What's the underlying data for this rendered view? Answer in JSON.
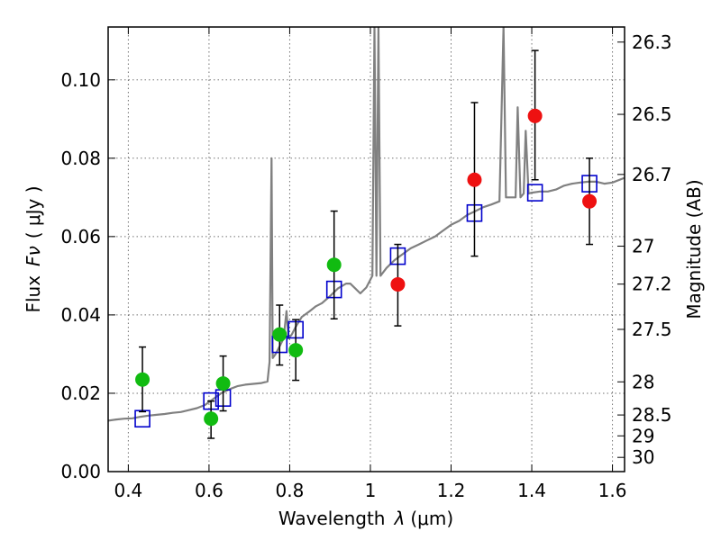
{
  "chart_data": {
    "type": "scatter",
    "xlabel": "Wavelength",
    "xlabel_symbol": "λ",
    "xlabel_unit": "(μm)",
    "ylabel": "Flux",
    "ylabel_symbol": "Fν",
    "ylabel_unit": "( μJy )",
    "ylabel_right": "Magnitude (AB)",
    "xlim": [
      0.35,
      1.63
    ],
    "ylim": [
      0.0,
      0.1135
    ],
    "grid": true,
    "x_ticks": [
      0.4,
      0.6,
      0.8,
      1.0,
      1.2,
      1.4,
      1.6
    ],
    "x_tick_labels": [
      "0.4",
      "0.6",
      "0.8",
      "1",
      "1.2",
      "1.4",
      "1.6"
    ],
    "y_ticks": [
      0.0,
      0.02,
      0.04,
      0.06,
      0.08,
      0.1
    ],
    "y_tick_labels": [
      "0.00",
      "0.02",
      "0.04",
      "0.06",
      "0.08",
      "0.10"
    ],
    "right_ticks": [
      {
        "mag": 26.3,
        "label": "26.3"
      },
      {
        "mag": 26.5,
        "label": "26.5"
      },
      {
        "mag": 26.7,
        "label": "26.7"
      },
      {
        "mag": 27.0,
        "label": "27"
      },
      {
        "mag": 27.2,
        "label": "27.2"
      },
      {
        "mag": 27.5,
        "label": "27.5"
      },
      {
        "mag": 28.0,
        "label": "28"
      },
      {
        "mag": 28.5,
        "label": "28.5"
      },
      {
        "mag": 29.0,
        "label": "29"
      },
      {
        "mag": 30.0,
        "label": "30"
      }
    ],
    "colors": {
      "spectrum": "#808080",
      "green_points": "#11bb11",
      "red_points": "#ee1111",
      "model_squares": "#0000cc",
      "errorbars": "#000000"
    },
    "series": [
      {
        "kind": "spectrum",
        "points": [
          [
            0.35,
            0.013
          ],
          [
            0.37,
            0.0133
          ],
          [
            0.39,
            0.0135
          ],
          [
            0.41,
            0.0136
          ],
          [
            0.43,
            0.014
          ],
          [
            0.45,
            0.0143
          ],
          [
            0.47,
            0.0145
          ],
          [
            0.49,
            0.0147
          ],
          [
            0.51,
            0.015
          ],
          [
            0.53,
            0.0152
          ],
          [
            0.55,
            0.0157
          ],
          [
            0.57,
            0.0162
          ],
          [
            0.59,
            0.017
          ],
          [
            0.61,
            0.0185
          ],
          [
            0.63,
            0.02
          ],
          [
            0.65,
            0.021
          ],
          [
            0.67,
            0.0218
          ],
          [
            0.69,
            0.0222
          ],
          [
            0.71,
            0.0224
          ],
          [
            0.73,
            0.0226
          ],
          [
            0.745,
            0.023
          ],
          [
            0.75,
            0.028
          ],
          [
            0.755,
            0.08
          ],
          [
            0.758,
            0.029
          ],
          [
            0.765,
            0.03
          ],
          [
            0.775,
            0.032
          ],
          [
            0.785,
            0.034
          ],
          [
            0.792,
            0.041
          ],
          [
            0.797,
            0.034
          ],
          [
            0.805,
            0.035
          ],
          [
            0.815,
            0.037
          ],
          [
            0.83,
            0.0395
          ],
          [
            0.85,
            0.041
          ],
          [
            0.865,
            0.0422
          ],
          [
            0.88,
            0.043
          ],
          [
            0.9,
            0.0448
          ],
          [
            0.92,
            0.0468
          ],
          [
            0.94,
            0.048
          ],
          [
            0.95,
            0.048
          ],
          [
            0.96,
            0.047
          ],
          [
            0.975,
            0.0455
          ],
          [
            0.99,
            0.047
          ],
          [
            1.005,
            0.05
          ],
          [
            1.01,
            0.1135
          ],
          [
            1.015,
            0.05
          ],
          [
            1.02,
            0.1135
          ],
          [
            1.025,
            0.05
          ],
          [
            1.04,
            0.052
          ],
          [
            1.06,
            0.054
          ],
          [
            1.08,
            0.0555
          ],
          [
            1.1,
            0.057
          ],
          [
            1.12,
            0.058
          ],
          [
            1.14,
            0.059
          ],
          [
            1.16,
            0.06
          ],
          [
            1.18,
            0.0615
          ],
          [
            1.2,
            0.063
          ],
          [
            1.22,
            0.064
          ],
          [
            1.24,
            0.0655
          ],
          [
            1.26,
            0.0665
          ],
          [
            1.28,
            0.0675
          ],
          [
            1.3,
            0.0682
          ],
          [
            1.32,
            0.069
          ],
          [
            1.33,
            0.1135
          ],
          [
            1.336,
            0.07
          ],
          [
            1.35,
            0.07
          ],
          [
            1.36,
            0.07
          ],
          [
            1.365,
            0.093
          ],
          [
            1.372,
            0.07
          ],
          [
            1.38,
            0.071
          ],
          [
            1.385,
            0.087
          ],
          [
            1.392,
            0.071
          ],
          [
            1.4,
            0.0712
          ],
          [
            1.42,
            0.0715
          ],
          [
            1.44,
            0.0715
          ],
          [
            1.46,
            0.072
          ],
          [
            1.48,
            0.073
          ],
          [
            1.5,
            0.0735
          ],
          [
            1.52,
            0.0738
          ],
          [
            1.54,
            0.074
          ],
          [
            1.56,
            0.074
          ],
          [
            1.58,
            0.0735
          ],
          [
            1.6,
            0.0738
          ],
          [
            1.63,
            0.075
          ]
        ]
      },
      {
        "kind": "green_points",
        "points": [
          {
            "x": 0.435,
            "y": 0.0235,
            "lo": 0.0153,
            "hi": 0.0318
          },
          {
            "x": 0.605,
            "y": 0.0135,
            "lo": 0.0085,
            "hi": 0.018
          },
          {
            "x": 0.635,
            "y": 0.0225,
            "lo": 0.0155,
            "hi": 0.0295
          },
          {
            "x": 0.775,
            "y": 0.035,
            "lo": 0.0272,
            "hi": 0.0425
          },
          {
            "x": 0.815,
            "y": 0.031,
            "lo": 0.0233,
            "hi": 0.0388
          },
          {
            "x": 0.91,
            "y": 0.0528,
            "lo": 0.039,
            "hi": 0.0665
          }
        ]
      },
      {
        "kind": "red_points",
        "points": [
          {
            "x": 1.068,
            "y": 0.0478,
            "lo": 0.0372,
            "hi": 0.058
          },
          {
            "x": 1.258,
            "y": 0.0745,
            "lo": 0.055,
            "hi": 0.0942
          },
          {
            "x": 1.408,
            "y": 0.0908,
            "lo": 0.0745,
            "hi": 0.1075
          },
          {
            "x": 1.543,
            "y": 0.069,
            "lo": 0.058,
            "hi": 0.08
          }
        ]
      },
      {
        "kind": "model_squares",
        "points": [
          [
            0.435,
            0.0135
          ],
          [
            0.605,
            0.018
          ],
          [
            0.635,
            0.0188
          ],
          [
            0.775,
            0.0325
          ],
          [
            0.815,
            0.0362
          ],
          [
            0.91,
            0.0465
          ],
          [
            1.068,
            0.055
          ],
          [
            1.258,
            0.066
          ],
          [
            1.408,
            0.0712
          ],
          [
            1.543,
            0.0735
          ]
        ]
      }
    ]
  }
}
